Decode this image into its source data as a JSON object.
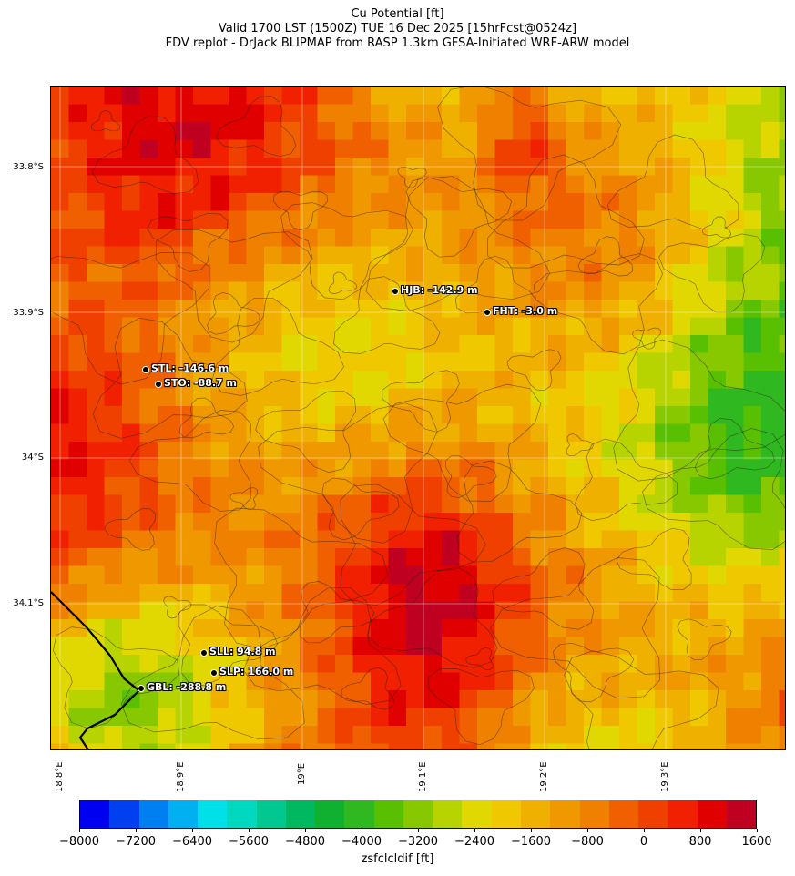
{
  "title": {
    "line1": "Cu Potential [ft]",
    "line2": "Valid 1700 LST (1500Z) TUE 16 Dec 2025 [15hrFcst@0524z]",
    "line3": "FDV replot - DrJack BLIPMAP from RASP 1.3km GFSA-Initiated WRF-ARW model"
  },
  "map": {
    "lat_labels": [
      "33.8°S",
      "33.9°S",
      "34°S",
      "34.1°S"
    ],
    "lon_labels": [
      "18.8°E",
      "18.9°E",
      "19°E",
      "19.1°E",
      "19.2°E",
      "19.3°E"
    ],
    "stations": [
      {
        "name": "HJB",
        "label": "HJB: -142.9 m"
      },
      {
        "name": "FHT",
        "label": "FHT: -3.0 m"
      },
      {
        "name": "STL",
        "label": "STL: -146.6 m"
      },
      {
        "name": "STO",
        "label": "STO: -88.7 m"
      },
      {
        "name": "SLL",
        "label": "SLL: 94.8 m"
      },
      {
        "name": "SLP",
        "label": "SLP: 166.0 m"
      },
      {
        "name": "GBL",
        "label": "GBL: -288.8 m"
      }
    ]
  },
  "colorbar": {
    "label": "zsfclcldif [ft]",
    "tick_labels": [
      "−8000",
      "−7200",
      "−6400",
      "−5600",
      "−4800",
      "−4000",
      "−3200",
      "−2400",
      "−1600",
      "−800",
      "0",
      "800",
      "1600"
    ],
    "colors": [
      "#0000f0",
      "#0040f0",
      "#0080f0",
      "#00b0f0",
      "#00e0e8",
      "#00d8c0",
      "#00c890",
      "#00b860",
      "#10b030",
      "#30b820",
      "#58c000",
      "#88c800",
      "#b8d400",
      "#e0d800",
      "#f0c800",
      "#f0b000",
      "#f09800",
      "#f08000",
      "#f06000",
      "#f04000",
      "#f02000",
      "#e00000",
      "#c00020"
    ]
  }
}
